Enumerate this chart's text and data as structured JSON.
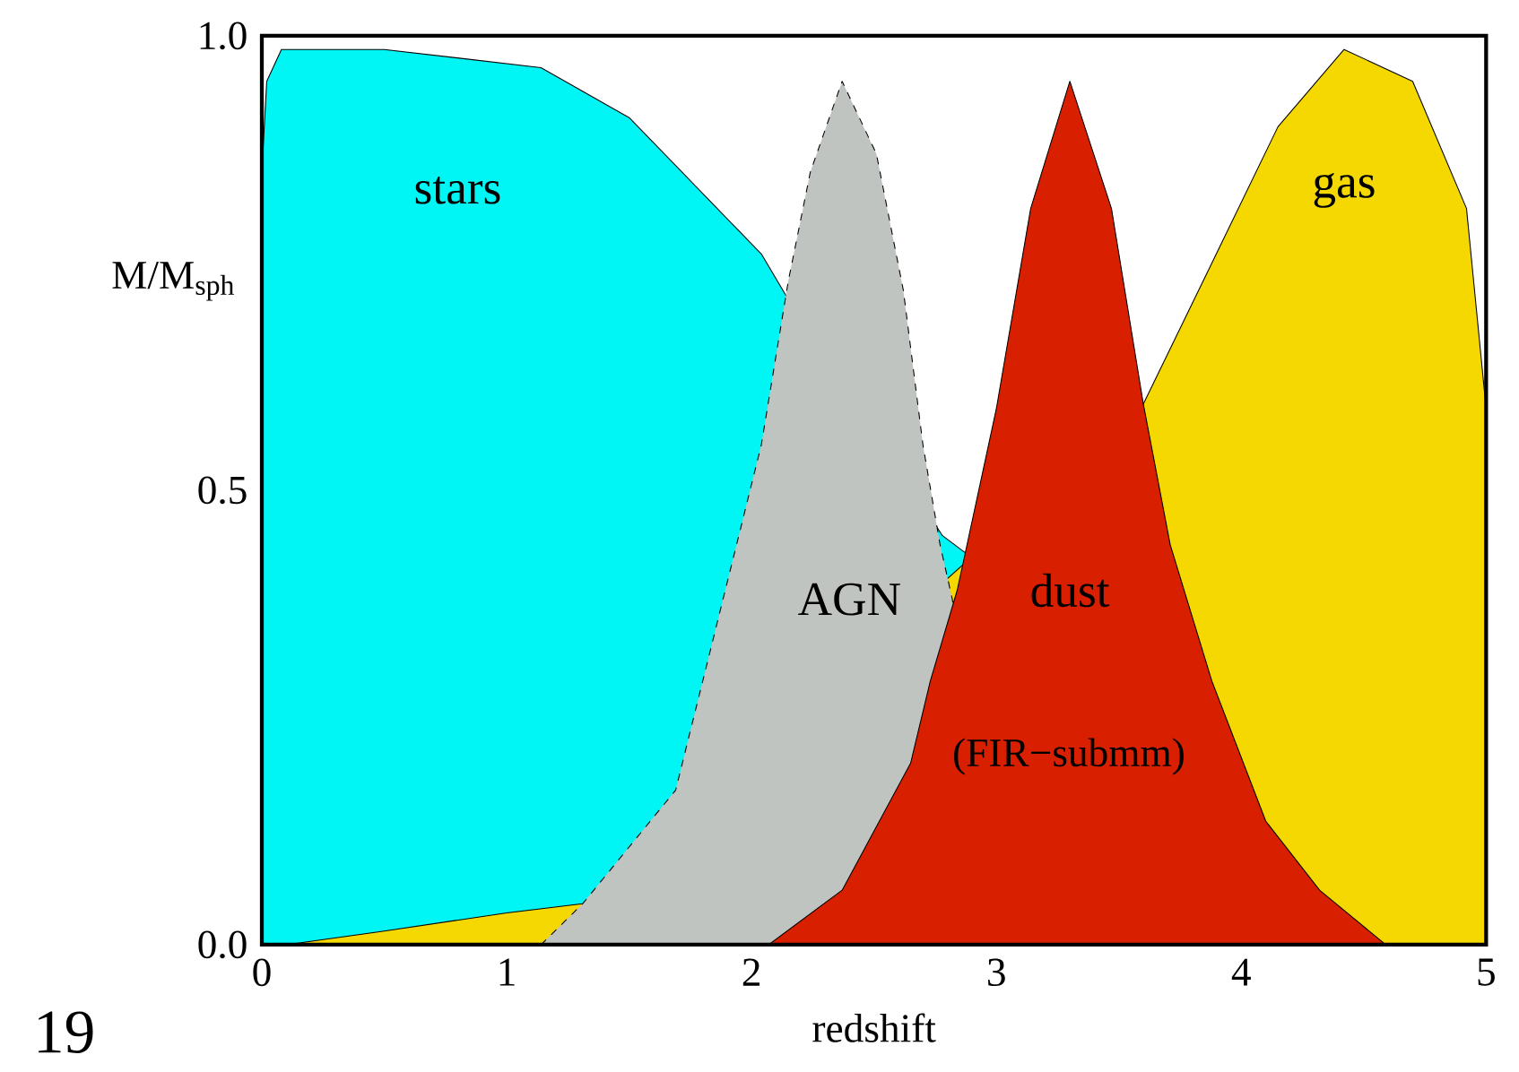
{
  "chart_data": {
    "type": "area",
    "xlabel": "redshift",
    "ylabel": "M/M$_{sph}$",
    "xlim": [
      0,
      5
    ],
    "ylim": [
      0,
      1
    ],
    "xticks": [
      0,
      1,
      2,
      3,
      4,
      5
    ],
    "yticks": [
      {
        "value": 0,
        "label": "0.0"
      },
      {
        "value": 0.5,
        "label": "0.5"
      },
      {
        "value": 1,
        "label": "1.0"
      }
    ],
    "grid": false,
    "legend": false,
    "series": [
      {
        "name": "stars",
        "color": "#00f5f5",
        "x": [
          0,
          0.02,
          0.08,
          0.5,
          1.14,
          1.5,
          2.04,
          2.15,
          2.78,
          5.0
        ],
        "values": [
          0.85,
          0.95,
          0.985,
          0.985,
          0.965,
          0.91,
          0.76,
          0.71,
          0.45,
          0
        ]
      },
      {
        "name": "gas",
        "color": "#f5d800",
        "x": [
          0.1,
          0.5,
          1.0,
          1.31,
          3.6,
          3.88,
          4.15,
          4.42,
          4.7,
          4.92,
          5.0
        ],
        "values": [
          0,
          0.015,
          0.035,
          0.045,
          0.595,
          0.75,
          0.9,
          0.985,
          0.95,
          0.81,
          0.59
        ]
      },
      {
        "name": "AGN",
        "color": "#c0c4c0",
        "line_style": "dashed",
        "x": [
          1.14,
          1.31,
          1.69,
          2.04,
          2.15,
          2.24,
          2.37,
          2.51,
          2.62,
          2.7,
          2.77,
          2.82,
          3.0
        ],
        "values": [
          0,
          0.045,
          0.17,
          0.55,
          0.73,
          0.85,
          0.95,
          0.87,
          0.72,
          0.55,
          0.44,
          0.38,
          0
        ]
      },
      {
        "name": "dust",
        "color": "#d82000",
        "x": [
          2.07,
          2.37,
          2.65,
          2.73,
          2.84,
          3.0,
          3.14,
          3.3,
          3.47,
          3.6,
          3.71,
          3.88,
          4.1,
          4.32,
          4.59
        ],
        "values": [
          0,
          0.06,
          0.2,
          0.29,
          0.39,
          0.59,
          0.81,
          0.95,
          0.81,
          0.595,
          0.44,
          0.29,
          0.136,
          0.06,
          0
        ]
      }
    ],
    "annotations": [
      "(FIR−submm)",
      "19"
    ]
  }
}
